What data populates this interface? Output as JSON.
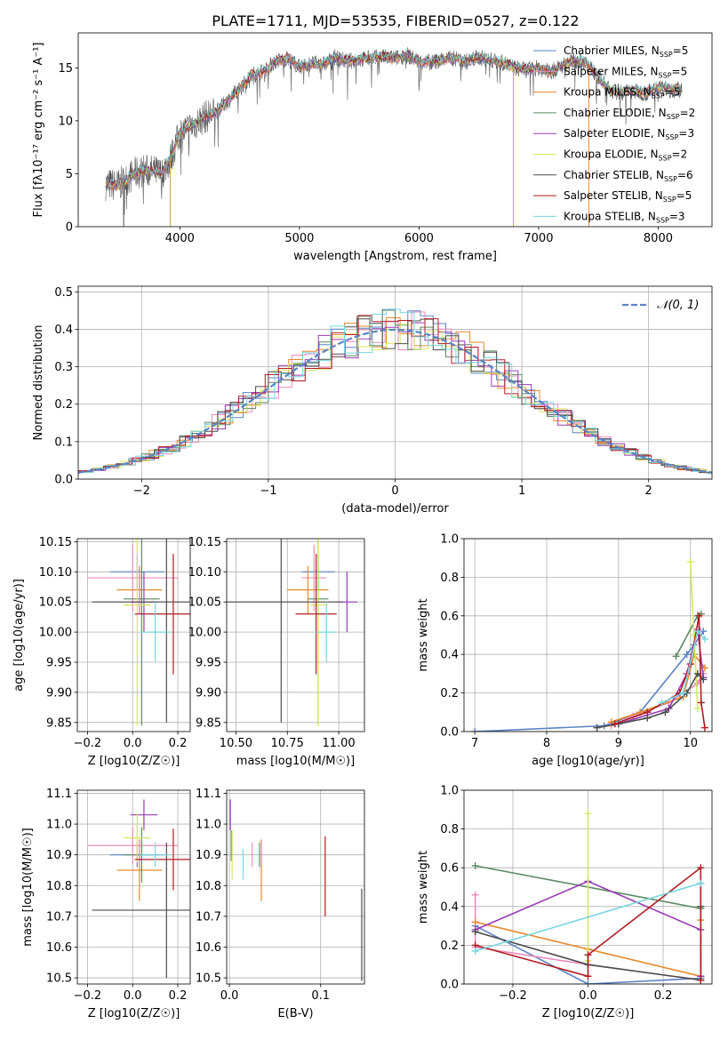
{
  "figure_title": "PLATE=1711, MJD=53535, FIBERID=0527, z=0.122",
  "chart_data": [
    {
      "id": "spectrum",
      "type": "line",
      "title": "PLATE=1711, MJD=53535, FIBERID=0527, z=0.122",
      "xlabel": "wavelength [Angstrom, rest frame]",
      "ylabel": "Flux [fλ10⁻¹⁷ erg cm⁻² s⁻¹ A⁻¹]",
      "xlim": [
        3150,
        8450
      ],
      "ylim": [
        0,
        18.3
      ],
      "xticks": [
        4000,
        5000,
        6000,
        7000,
        8000
      ],
      "yticks": [
        0,
        5,
        10,
        15
      ],
      "grid": false,
      "legend": "right",
      "data_grey": [
        [
          3380,
          4.0
        ],
        [
          3480,
          3.9
        ],
        [
          3550,
          4.4
        ],
        [
          3620,
          5.0
        ],
        [
          3700,
          5.3
        ],
        [
          3780,
          5.2
        ],
        [
          3850,
          5.0
        ],
        [
          3920,
          6.4
        ],
        [
          4000,
          8.8
        ],
        [
          4100,
          9.5
        ],
        [
          4200,
          10.3
        ],
        [
          4300,
          10.8
        ],
        [
          4400,
          11.9
        ],
        [
          4500,
          13.0
        ],
        [
          4600,
          14.3
        ],
        [
          4700,
          14.7
        ],
        [
          4800,
          15.6
        ],
        [
          4900,
          15.9
        ],
        [
          5000,
          15.1
        ],
        [
          5100,
          15.4
        ],
        [
          5200,
          15.3
        ],
        [
          5300,
          16.0
        ],
        [
          5400,
          15.6
        ],
        [
          5500,
          15.8
        ],
        [
          5600,
          15.9
        ],
        [
          5700,
          16.0
        ],
        [
          5800,
          15.9
        ],
        [
          5900,
          16.2
        ],
        [
          6000,
          15.6
        ],
        [
          6100,
          15.5
        ],
        [
          6200,
          15.8
        ],
        [
          6300,
          15.9
        ],
        [
          6400,
          15.6
        ],
        [
          6500,
          16.0
        ],
        [
          6600,
          15.7
        ],
        [
          6700,
          15.5
        ],
        [
          6800,
          15.0
        ],
        [
          6900,
          14.8
        ],
        [
          7000,
          15.0
        ],
        [
          7100,
          14.6
        ],
        [
          7200,
          15.2
        ],
        [
          7300,
          15.7
        ],
        [
          7400,
          15.5
        ],
        [
          7500,
          14.1
        ],
        [
          7600,
          12.8
        ],
        [
          7700,
          12.7
        ],
        [
          7800,
          12.8
        ],
        [
          7900,
          12.6
        ],
        [
          8000,
          13.2
        ],
        [
          8100,
          13.0
        ],
        [
          8200,
          12.9
        ]
      ],
      "model_series": [
        {
          "name": "Chabrier MILES, N_SSP=5",
          "color": "#5b84c4"
        },
        {
          "name": "Salpeter MILES, N_SSP=5",
          "color": "#ec8cbd"
        },
        {
          "name": "Kroupa MILES, N_SSP=5",
          "color": "#e68a2e"
        },
        {
          "name": "Chabrier ELODIE, N_SSP=2",
          "color": "#5e8a63"
        },
        {
          "name": "Salpeter ELODIE, N_SSP=3",
          "color": "#9a3bb8"
        },
        {
          "name": "Kroupa ELODIE, N_SSP=2",
          "color": "#d6e85f"
        },
        {
          "name": "Chabrier STELIB, N_SSP=6",
          "color": "#4d4d4d"
        },
        {
          "name": "Salpeter STELIB, N_SSP=5",
          "color": "#b01d24"
        },
        {
          "name": "Kroupa STELIB, N_SSP=3",
          "color": "#77d6e0"
        }
      ],
      "legend_entries": [
        {
          "label": "Chabrier MILES, N",
          "sub": "SSP",
          "suffix": "=5",
          "color": "#5b84c4"
        },
        {
          "label": "Salpeter MILES, N",
          "sub": "SSP",
          "suffix": "=5",
          "color": "#ec8cbd"
        },
        {
          "label": "Kroupa MILES, N",
          "sub": "SSP",
          "suffix": "=5",
          "color": "#e68a2e"
        },
        {
          "label": "Chabrier ELODIE, N",
          "sub": "SSP",
          "suffix": "=2",
          "color": "#5e8a63"
        },
        {
          "label": "Salpeter ELODIE, N",
          "sub": "SSP",
          "suffix": "=3",
          "color": "#9a3bb8"
        },
        {
          "label": "Kroupa ELODIE, N",
          "sub": "SSP",
          "suffix": "=2",
          "color": "#d6e85f"
        },
        {
          "label": "Chabrier STELIB, N",
          "sub": "SSP",
          "suffix": "=6",
          "color": "#4d4d4d"
        },
        {
          "label": "Salpeter STELIB, N",
          "sub": "SSP",
          "suffix": "=5",
          "color": "#b01d24"
        },
        {
          "label": "Kroupa STELIB, N",
          "sub": "SSP",
          "suffix": "=3",
          "color": "#77d6e0"
        }
      ]
    },
    {
      "id": "residuals",
      "type": "histogram",
      "xlabel": "(data-model)/error",
      "ylabel": "Normed distribution",
      "xlim": [
        -2.5,
        2.5
      ],
      "ylim": [
        0,
        0.515
      ],
      "xticks": [
        -2,
        -1,
        0,
        1,
        2
      ],
      "yticks": [
        0.0,
        0.1,
        0.2,
        0.3,
        0.4,
        0.5
      ],
      "grid": true,
      "legend": "top-right",
      "legend_label": "𝒩(0, 1)",
      "gaussian_color": "#5b84c4"
    },
    {
      "id": "age_vs_Z",
      "type": "errorbar",
      "xlabel": "Z [log10(Z/Z☉)]",
      "ylabel": "age  [log10(age/yr)]",
      "xlim": [
        -0.245,
        0.255
      ],
      "ylim": [
        9.835,
        10.155
      ],
      "xticks": [
        -0.2,
        0.0,
        0.2
      ],
      "yticks": [
        9.85,
        9.9,
        9.95,
        10.0,
        10.05,
        10.1,
        10.15
      ],
      "grid": true,
      "points": [
        {
          "color": "#5b84c4",
          "x": 0.02,
          "xerr": 0.12,
          "y": 10.1,
          "yerr": 0.03
        },
        {
          "color": "#ec8cbd",
          "x": 0.0,
          "xerr": 0.2,
          "y": 10.09,
          "yerr": 0.055
        },
        {
          "color": "#e68a2e",
          "x": 0.03,
          "xerr": 0.1,
          "y": 10.07,
          "yerr": 0.04
        },
        {
          "color": "#5e8a63",
          "x": 0.04,
          "xerr": 0.08,
          "y": 10.055,
          "yerr": 0.21
        },
        {
          "color": "#9a3bb8",
          "x": 0.05,
          "xerr": 0.06,
          "y": 10.05,
          "yerr": 0.05
        },
        {
          "color": "#d6e85f",
          "x": 0.02,
          "xerr": 0.06,
          "y": 10.045,
          "yerr": 0.2
        },
        {
          "color": "#4d4d4d",
          "x": 0.15,
          "xerr": 0.33,
          "y": 10.05,
          "yerr": 0.2
        },
        {
          "color": "#b01d24",
          "x": 0.18,
          "xerr": 0.17,
          "y": 10.03,
          "yerr": 0.1
        },
        {
          "color": "#77d6e0",
          "x": 0.1,
          "xerr": 0.07,
          "y": 10.0,
          "yerr": 0.05
        }
      ]
    },
    {
      "id": "age_vs_mass",
      "type": "errorbar",
      "xlabel": "mass [log10(M/M☉)]",
      "ylabel": "",
      "xlim": [
        10.455,
        11.125
      ],
      "ylim": [
        9.835,
        10.155
      ],
      "xticks": [
        10.5,
        10.75,
        11.0
      ],
      "yticks": [
        9.85,
        9.9,
        9.95,
        10.0,
        10.05,
        10.1,
        10.15
      ],
      "grid": true,
      "points": [
        {
          "color": "#5b84c4",
          "x": 10.9,
          "xerr": 0.08,
          "y": 10.1,
          "yerr": 0.03
        },
        {
          "color": "#ec8cbd",
          "x": 10.88,
          "xerr": 0.06,
          "y": 10.09,
          "yerr": 0.055
        },
        {
          "color": "#e68a2e",
          "x": 10.85,
          "xerr": 0.1,
          "y": 10.07,
          "yerr": 0.04
        },
        {
          "color": "#5e8a63",
          "x": 10.9,
          "xerr": 0.05,
          "y": 10.055,
          "yerr": 0.21
        },
        {
          "color": "#9a3bb8",
          "x": 11.04,
          "xerr": 0.05,
          "y": 10.05,
          "yerr": 0.05
        },
        {
          "color": "#d6e85f",
          "x": 10.9,
          "xerr": 0.04,
          "y": 10.045,
          "yerr": 0.2
        },
        {
          "color": "#4d4d4d",
          "x": 10.72,
          "xerr": 0.3,
          "y": 10.05,
          "yerr": 0.2
        },
        {
          "color": "#b01d24",
          "x": 10.89,
          "xerr": 0.1,
          "y": 10.03,
          "yerr": 0.1
        },
        {
          "color": "#77d6e0",
          "x": 10.94,
          "xerr": 0.05,
          "y": 10.0,
          "yerr": 0.05
        }
      ]
    },
    {
      "id": "mass_weight_vs_age",
      "type": "line",
      "xlabel": "age  [log10(age/yr)]",
      "ylabel": "mass weight",
      "xlim": [
        6.85,
        10.3
      ],
      "ylim": [
        0,
        1.0
      ],
      "xticks": [
        7,
        8,
        9,
        10
      ],
      "yticks": [
        0.0,
        0.2,
        0.4,
        0.6,
        0.8,
        1.0
      ],
      "grid": true,
      "series": [
        {
          "color": "#5b84c4",
          "x": [
            7.0,
            8.8,
            9.3,
            9.95,
            10.05,
            10.18
          ],
          "y": [
            0.0,
            0.03,
            0.1,
            0.4,
            0.45,
            0.52
          ]
        },
        {
          "color": "#ec8cbd",
          "x": [
            8.9,
            9.2,
            9.7,
            10.1,
            10.18
          ],
          "y": [
            0.03,
            0.08,
            0.15,
            0.25,
            0.3
          ]
        },
        {
          "color": "#e68a2e",
          "x": [
            8.9,
            9.3,
            9.9,
            10.05,
            10.2
          ],
          "y": [
            0.05,
            0.1,
            0.18,
            0.4,
            0.33
          ]
        },
        {
          "color": "#5e8a63",
          "x": [
            9.8,
            10.1,
            10.15
          ],
          "y": [
            0.39,
            0.6,
            0.61
          ]
        },
        {
          "color": "#9a3bb8",
          "x": [
            9.0,
            9.7,
            9.95,
            10.1,
            10.18
          ],
          "y": [
            0.04,
            0.12,
            0.3,
            0.53,
            0.28
          ]
        },
        {
          "color": "#d6e85f",
          "x": [
            10.0,
            10.05,
            10.1
          ],
          "y": [
            0.88,
            0.5,
            0.12
          ]
        },
        {
          "color": "#4d4d4d",
          "x": [
            8.7,
            9.0,
            9.4,
            9.65,
            9.95,
            10.1,
            10.18
          ],
          "y": [
            0.02,
            0.04,
            0.07,
            0.1,
            0.2,
            0.3,
            0.27
          ]
        },
        {
          "color": "#b01d24",
          "x": [
            8.95,
            9.4,
            9.85,
            10.0,
            10.12,
            10.15,
            10.2
          ],
          "y": [
            0.04,
            0.1,
            0.2,
            0.35,
            0.6,
            0.15,
            0.02
          ]
        },
        {
          "color": "#77d6e0",
          "x": [
            9.6,
            9.9,
            10.1,
            10.2
          ],
          "y": [
            0.15,
            0.2,
            0.52,
            0.48
          ]
        }
      ]
    },
    {
      "id": "mass_vs_Z",
      "type": "errorbar",
      "xlabel": "Z [log10(Z/Z☉)]",
      "ylabel": "mass [log10(M/M☉)]",
      "xlim": [
        -0.245,
        0.255
      ],
      "ylim": [
        10.48,
        11.11
      ],
      "xticks": [
        -0.2,
        0.0,
        0.2
      ],
      "yticks": [
        10.5,
        10.6,
        10.7,
        10.8,
        10.9,
        11.0,
        11.1
      ],
      "grid": true,
      "points": [
        {
          "color": "#5b84c4",
          "x": 0.02,
          "xerr": 0.12,
          "y": 10.9,
          "yerr": 0.04
        },
        {
          "color": "#ec8cbd",
          "x": 0.0,
          "xerr": 0.2,
          "y": 10.93,
          "yerr": 0.06
        },
        {
          "color": "#e68a2e",
          "x": 0.03,
          "xerr": 0.1,
          "y": 10.85,
          "yerr": 0.1
        },
        {
          "color": "#5e8a63",
          "x": 0.04,
          "xerr": 0.08,
          "y": 10.9,
          "yerr": 0.09
        },
        {
          "color": "#9a3bb8",
          "x": 0.05,
          "xerr": 0.06,
          "y": 11.03,
          "yerr": 0.05
        },
        {
          "color": "#d6e85f",
          "x": 0.02,
          "xerr": 0.06,
          "y": 10.955,
          "yerr": 0.08
        },
        {
          "color": "#4d4d4d",
          "x": 0.15,
          "xerr": 0.33,
          "y": 10.72,
          "yerr": 0.22
        },
        {
          "color": "#b01d24",
          "x": 0.18,
          "xerr": 0.17,
          "y": 10.885,
          "yerr": 0.1
        },
        {
          "color": "#77d6e0",
          "x": 0.1,
          "xerr": 0.07,
          "y": 10.9,
          "yerr": 0.04
        }
      ]
    },
    {
      "id": "mass_vs_ebv",
      "type": "errorbar",
      "xlabel": "E(B-V)",
      "ylabel": "",
      "xlim": [
        -0.003,
        0.148
      ],
      "ylim": [
        10.48,
        11.11
      ],
      "xticks": [
        0.0,
        0.1
      ],
      "yticks": [
        10.5,
        10.6,
        10.7,
        10.8,
        10.9,
        11.0,
        11.1
      ],
      "grid": true,
      "points": [
        {
          "color": "#5b84c4",
          "x": 0.033,
          "xerr": 0,
          "y": 10.9,
          "yerr": 0.04
        },
        {
          "color": "#ec8cbd",
          "x": 0.025,
          "xerr": 0,
          "y": 10.9,
          "yerr": 0.04
        },
        {
          "color": "#e68a2e",
          "x": 0.035,
          "xerr": 0,
          "y": 10.85,
          "yerr": 0.1
        },
        {
          "color": "#5e8a63",
          "x": 0.002,
          "xerr": 0,
          "y": 10.93,
          "yerr": 0.05
        },
        {
          "color": "#9a3bb8",
          "x": 0.001,
          "xerr": 0,
          "y": 11.03,
          "yerr": 0.05
        },
        {
          "color": "#d6e85f",
          "x": 0.003,
          "xerr": 0,
          "y": 10.9,
          "yerr": 0.08
        },
        {
          "color": "#4d4d4d",
          "x": 0.145,
          "xerr": 0,
          "y": 10.64,
          "yerr": 0.15
        },
        {
          "color": "#b01d24",
          "x": 0.105,
          "xerr": 0,
          "y": 10.83,
          "yerr": 0.13
        },
        {
          "color": "#77d6e0",
          "x": 0.015,
          "xerr": 0,
          "y": 10.87,
          "yerr": 0.05
        }
      ]
    },
    {
      "id": "mass_weight_vs_Z",
      "type": "line",
      "xlabel": "Z [log10(Z/Z☉)]",
      "ylabel": "mass weight",
      "xlim": [
        -0.33,
        0.33
      ],
      "ylim": [
        0,
        1.0
      ],
      "xticks": [
        -0.2,
        0.0,
        0.2
      ],
      "yticks": [
        0.0,
        0.2,
        0.4,
        0.6,
        0.8,
        1.0
      ],
      "grid": true,
      "series": [
        {
          "color": "#5b84c4",
          "x": [
            -0.3,
            0.0,
            0.3,
            0.3
          ],
          "y": [
            0.3,
            0.0,
            0.03,
            0.52
          ]
        },
        {
          "color": "#ec8cbd",
          "x": [
            -0.3,
            -0.3,
            0.0,
            0.3
          ],
          "y": [
            0.46,
            0.19,
            0.1,
            0.02
          ]
        },
        {
          "color": "#e68a2e",
          "x": [
            -0.3,
            0.0,
            0.3,
            0.3
          ],
          "y": [
            0.32,
            0.18,
            0.04,
            0.33
          ]
        },
        {
          "color": "#5e8a63",
          "x": [
            -0.3,
            0.3
          ],
          "y": [
            0.61,
            0.39
          ]
        },
        {
          "color": "#9a3bb8",
          "x": [
            -0.3,
            0.0,
            0.3,
            0.3
          ],
          "y": [
            0.28,
            0.53,
            0.28,
            0.04
          ]
        },
        {
          "color": "#d6e85f",
          "x": [
            0.0,
            0.0
          ],
          "y": [
            0.88,
            0.12
          ]
        },
        {
          "color": "#4d4d4d",
          "x": [
            -0.3,
            0.0,
            0.3,
            0.3
          ],
          "y": [
            0.27,
            0.1,
            0.02,
            0.4
          ]
        },
        {
          "color": "#b01d24",
          "x": [
            -0.3,
            0.0,
            0.0,
            0.3,
            0.3
          ],
          "y": [
            0.2,
            0.04,
            0.15,
            0.6,
            0.02
          ]
        },
        {
          "color": "#77d6e0",
          "x": [
            -0.3,
            0.3
          ],
          "y": [
            0.17,
            0.52
          ]
        }
      ]
    }
  ]
}
